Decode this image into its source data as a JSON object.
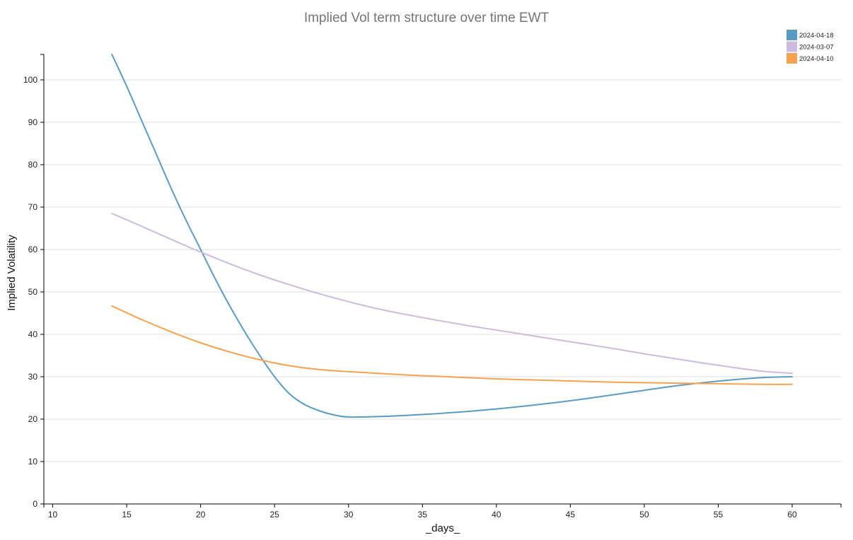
{
  "chart_data": {
    "type": "line",
    "title": "Implied Vol term structure over time EWT",
    "xlabel": "_days_",
    "ylabel": "Implied Volatility",
    "xlim": [
      9.4,
      63.3
    ],
    "ylim": [
      0,
      106
    ],
    "xticks": [
      10,
      15,
      20,
      25,
      30,
      35,
      40,
      45,
      50,
      55,
      60
    ],
    "yticks": [
      0,
      10,
      20,
      30,
      40,
      50,
      60,
      70,
      80,
      90,
      100
    ],
    "grid": "horizontal",
    "legend_position": "top-right",
    "series": [
      {
        "name": "2024-04-18",
        "color": "#5a9bc4",
        "x": [
          14,
          15,
          16,
          17,
          18,
          19,
          20,
          21,
          22,
          23,
          24,
          25,
          26,
          27,
          28,
          29,
          30,
          32,
          34,
          36,
          38,
          40,
          42,
          44,
          46,
          48,
          50,
          52,
          54,
          56,
          58,
          60
        ],
        "y": [
          106,
          98.5,
          90.5,
          82.5,
          74.5,
          67,
          60,
          53,
          46.5,
          40.5,
          35,
          30,
          26,
          23.5,
          22,
          21,
          20.5,
          20.6,
          20.9,
          21.3,
          21.8,
          22.4,
          23.1,
          23.9,
          24.8,
          25.8,
          26.8,
          27.8,
          28.6,
          29.3,
          29.8,
          30
        ]
      },
      {
        "name": "2024-03-07",
        "color": "#ccbbde",
        "x": [
          14,
          16,
          18,
          20,
          22,
          24,
          26,
          28,
          30,
          32,
          34,
          36,
          38,
          40,
          42,
          44,
          46,
          48,
          50,
          52,
          54,
          56,
          58,
          60
        ],
        "y": [
          68.5,
          65.5,
          62.4,
          59.4,
          56.6,
          54,
          51.7,
          49.6,
          47.7,
          46,
          44.6,
          43.3,
          42.1,
          41,
          39.9,
          38.8,
          37.7,
          36.6,
          35.4,
          34.3,
          33.2,
          32.2,
          31.3,
          30.8
        ]
      },
      {
        "name": "2024-04-10",
        "color": "#f7a24f",
        "x": [
          14,
          16,
          18,
          20,
          22,
          24,
          26,
          28,
          30,
          32,
          34,
          36,
          38,
          40,
          42,
          44,
          46,
          48,
          50,
          52,
          54,
          56,
          58,
          60
        ],
        "y": [
          46.7,
          43.5,
          40.6,
          38,
          35.8,
          34,
          32.6,
          31.7,
          31.2,
          30.8,
          30.4,
          30.1,
          29.8,
          29.5,
          29.3,
          29.1,
          28.9,
          28.7,
          28.6,
          28.5,
          28.4,
          28.3,
          28.2,
          28.2
        ]
      }
    ]
  }
}
